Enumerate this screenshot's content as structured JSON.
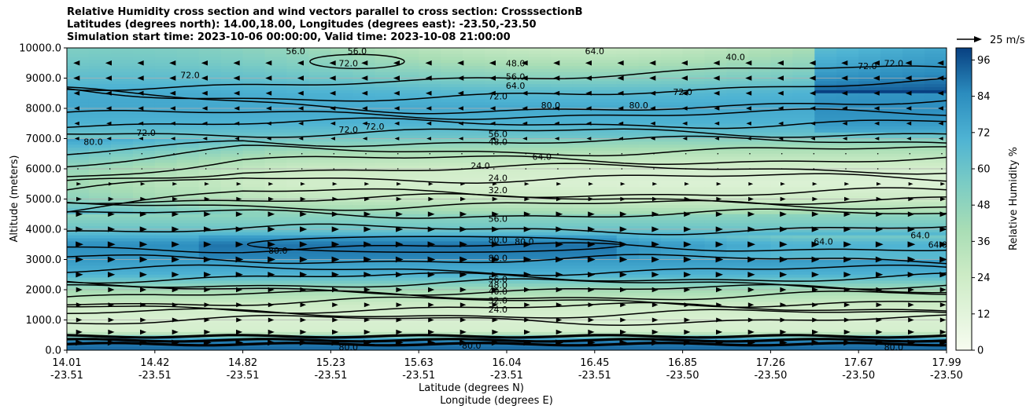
{
  "title": {
    "line1": "Relative Humidity cross section and wind vectors parallel to cross section: CrosssectionB",
    "line2": "Latitudes (degrees north): 14.00,18.00, Longitudes (degrees east): -23.50,-23.50",
    "line3": "Simulation start time: 2023-10-06 00:00:00, Valid time: 2023-10-08 21:00:00"
  },
  "chart_data": {
    "type": "heatmap",
    "ylabel": "Altitude (meters)",
    "xlabel_line1": "Latitude (degrees N)",
    "xlabel_line2": "Longitude (degrees E)",
    "ylim": [
      0,
      10000
    ],
    "y_ticks": [
      "0.0",
      "1000.0",
      "2000.0",
      "3000.0",
      "4000.0",
      "5000.0",
      "6000.0",
      "7000.0",
      "8000.0",
      "9000.0",
      "10000.0"
    ],
    "x_ticks": [
      {
        "lat": "14.01",
        "lon": "-23.51"
      },
      {
        "lat": "14.42",
        "lon": "-23.51"
      },
      {
        "lat": "14.82",
        "lon": "-23.51"
      },
      {
        "lat": "15.23",
        "lon": "-23.51"
      },
      {
        "lat": "15.63",
        "lon": "-23.51"
      },
      {
        "lat": "16.04",
        "lon": "-23.51"
      },
      {
        "lat": "16.45",
        "lon": "-23.51"
      },
      {
        "lat": "16.85",
        "lon": "-23.50"
      },
      {
        "lat": "17.26",
        "lon": "-23.50"
      },
      {
        "lat": "17.67",
        "lon": "-23.50"
      },
      {
        "lat": "17.99",
        "lon": "-23.50"
      }
    ],
    "grid": "horizontal",
    "colorbar": {
      "label": "Relative Humidity %",
      "range": [
        0,
        100
      ],
      "ticks": [
        "0",
        "12",
        "24",
        "36",
        "48",
        "60",
        "72",
        "84",
        "96"
      ],
      "colormap": "GnBu"
    },
    "quiver_key": "25 m/s",
    "rh_profile": [
      {
        "alt": 0,
        "rh": 92
      },
      {
        "alt": 300,
        "rh": 88
      },
      {
        "alt": 600,
        "rh": 20
      },
      {
        "alt": 1000,
        "rh": 18
      },
      {
        "alt": 1500,
        "rh": 24
      },
      {
        "alt": 2000,
        "rh": 42
      },
      {
        "alt": 2500,
        "rh": 70
      },
      {
        "alt": 3000,
        "rh": 80
      },
      {
        "alt": 3500,
        "rh": 84
      },
      {
        "alt": 4000,
        "rh": 60
      },
      {
        "alt": 4500,
        "rh": 48
      },
      {
        "alt": 5000,
        "rh": 30
      },
      {
        "alt": 5500,
        "rh": 22
      },
      {
        "alt": 6000,
        "rh": 26
      },
      {
        "alt": 6500,
        "rh": 40
      },
      {
        "alt": 7000,
        "rh": 58
      },
      {
        "alt": 7500,
        "rh": 70
      },
      {
        "alt": 8000,
        "rh": 74
      },
      {
        "alt": 8500,
        "rh": 70
      },
      {
        "alt": 9000,
        "rh": 58
      },
      {
        "alt": 9500,
        "rh": 48
      },
      {
        "alt": 10000,
        "rh": 40
      }
    ],
    "contour_levels_alt": [
      200,
      330,
      460,
      1000,
      1200,
      1400,
      1600,
      1800,
      2000,
      2200,
      2400,
      2650,
      3000,
      3400,
      4000,
      4500,
      4800,
      5000,
      5200,
      5700,
      6000,
      6300,
      6600,
      6900,
      7200,
      7500,
      7800,
      8200,
      8600,
      9000
    ],
    "contour_labels": [
      {
        "text": "24.0",
        "lat_frac": 0.49,
        "alt": 1350
      },
      {
        "text": "32.0",
        "lat_frac": 0.49,
        "alt": 1650
      },
      {
        "text": "40.0",
        "lat_frac": 0.49,
        "alt": 1950
      },
      {
        "text": "48.0",
        "lat_frac": 0.49,
        "alt": 2150
      },
      {
        "text": "56.0",
        "lat_frac": 0.49,
        "alt": 2350
      },
      {
        "text": "80.0",
        "lat_frac": 0.49,
        "alt": 3050
      },
      {
        "text": "80.0",
        "lat_frac": 0.49,
        "alt": 3650
      },
      {
        "text": "80.0",
        "lat_frac": 0.52,
        "alt": 3600
      },
      {
        "text": "56.0",
        "lat_frac": 0.49,
        "alt": 4350
      },
      {
        "text": "32.0",
        "lat_frac": 0.49,
        "alt": 5300
      },
      {
        "text": "24.0",
        "lat_frac": 0.49,
        "alt": 5700
      },
      {
        "text": "24.0",
        "lat_frac": 0.47,
        "alt": 6100
      },
      {
        "text": "64.0",
        "lat_frac": 0.54,
        "alt": 6400
      },
      {
        "text": "48.0",
        "lat_frac": 0.49,
        "alt": 6900
      },
      {
        "text": "56.0",
        "lat_frac": 0.49,
        "alt": 7150
      },
      {
        "text": "72.0",
        "lat_frac": 0.49,
        "alt": 8400
      },
      {
        "text": "64.0",
        "lat_frac": 0.51,
        "alt": 8750
      },
      {
        "text": "56.0",
        "lat_frac": 0.51,
        "alt": 9050
      },
      {
        "text": "48.0",
        "lat_frac": 0.51,
        "alt": 9500
      },
      {
        "text": "72.0",
        "lat_frac": 0.7,
        "alt": 8550
      },
      {
        "text": "80.0",
        "lat_frac": 0.55,
        "alt": 8100
      },
      {
        "text": "80.0",
        "lat_frac": 0.65,
        "alt": 8100
      },
      {
        "text": "72.0",
        "lat_frac": 0.14,
        "alt": 9100
      },
      {
        "text": "72.0",
        "lat_frac": 0.32,
        "alt": 9500
      },
      {
        "text": "72.0",
        "lat_frac": 0.32,
        "alt": 7300
      },
      {
        "text": "72.0",
        "lat_frac": 0.35,
        "alt": 7400
      },
      {
        "text": "72.0",
        "lat_frac": 0.09,
        "alt": 7200
      },
      {
        "text": "80.0",
        "lat_frac": 0.03,
        "alt": 6900
      },
      {
        "text": "80.0",
        "lat_frac": 0.24,
        "alt": 3300
      },
      {
        "text": "64.0",
        "lat_frac": 0.86,
        "alt": 3600
      },
      {
        "text": "64.0",
        "lat_frac": 0.97,
        "alt": 3800
      },
      {
        "text": "64.0",
        "lat_frac": 0.99,
        "alt": 3500
      },
      {
        "text": "80.0",
        "lat_frac": 0.46,
        "alt": 150
      },
      {
        "text": "80.0",
        "lat_frac": 0.32,
        "alt": 100
      },
      {
        "text": "80.0",
        "lat_frac": 0.94,
        "alt": 100
      },
      {
        "text": "56.0",
        "lat_frac": 0.26,
        "alt": 9900
      },
      {
        "text": "56.0",
        "lat_frac": 0.33,
        "alt": 9900
      },
      {
        "text": "72.0",
        "lat_frac": 0.91,
        "alt": 9400
      },
      {
        "text": "72.0",
        "lat_frac": 0.94,
        "alt": 9500
      },
      {
        "text": "64.0",
        "lat_frac": 0.6,
        "alt": 9900
      },
      {
        "text": "40.0",
        "lat_frac": 0.76,
        "alt": 9700
      }
    ],
    "wind_rows": [
      {
        "alt": 250,
        "dir": 1,
        "size": 1.0
      },
      {
        "alt": 600,
        "dir": 1,
        "size": 0.7
      },
      {
        "alt": 1000,
        "dir": 1,
        "size": 0.6
      },
      {
        "alt": 1500,
        "dir": 1,
        "size": 0.6
      },
      {
        "alt": 2000,
        "dir": 1,
        "size": 0.7
      },
      {
        "alt": 2500,
        "dir": 1,
        "size": 0.9
      },
      {
        "alt": 3000,
        "dir": 1,
        "size": 1.0
      },
      {
        "alt": 3500,
        "dir": 1,
        "size": 1.0
      },
      {
        "alt": 4000,
        "dir": 1,
        "size": 0.9
      },
      {
        "alt": 4500,
        "dir": 1,
        "size": 0.8
      },
      {
        "alt": 5000,
        "dir": 1,
        "size": 0.5
      },
      {
        "alt": 5500,
        "dir": 1,
        "size": 0.3
      },
      {
        "alt": 6000,
        "dir": 0,
        "size": 0.1
      },
      {
        "alt": 6500,
        "dir": 0,
        "size": 0.1
      },
      {
        "alt": 7000,
        "dir": -1,
        "size": 0.3
      },
      {
        "alt": 7500,
        "dir": -1,
        "size": 0.4
      },
      {
        "alt": 8000,
        "dir": -1,
        "size": 0.5
      },
      {
        "alt": 8500,
        "dir": -1,
        "size": 0.6
      },
      {
        "alt": 9000,
        "dir": -1,
        "size": 0.7
      },
      {
        "alt": 9500,
        "dir": -1,
        "size": 0.7
      }
    ]
  }
}
